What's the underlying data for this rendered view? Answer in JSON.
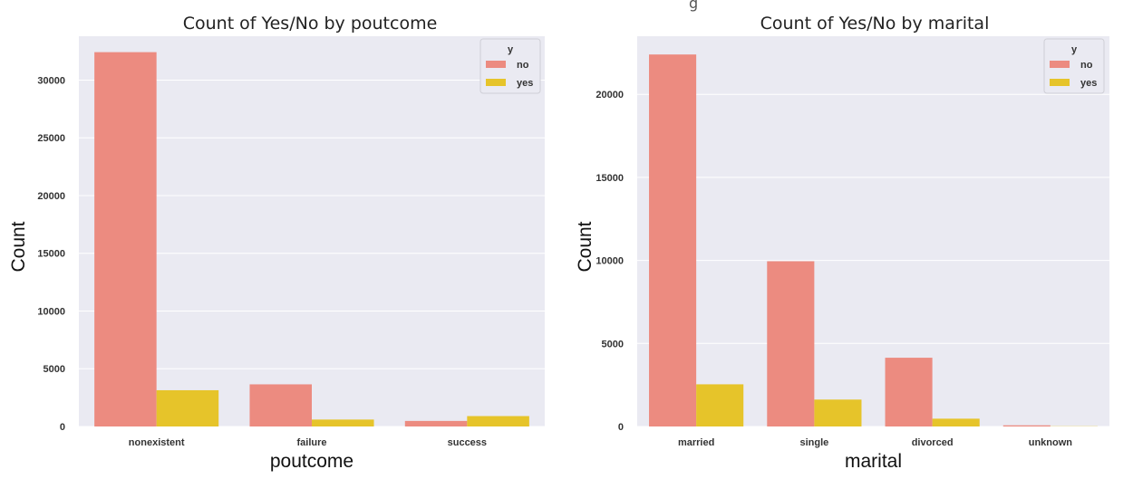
{
  "header_fragment": "g",
  "colors": {
    "no": "#ec8b80",
    "yes": "#e6c42a",
    "panel_bg": "#eaeaf2"
  },
  "legend": {
    "title": "y",
    "labels": [
      "no",
      "yes"
    ]
  },
  "chart_data": [
    {
      "type": "bar",
      "title": "Count of Yes/No by poutcome",
      "xlabel": "poutcome",
      "ylabel": "Count",
      "categories": [
        "nonexistent",
        "failure",
        "success"
      ],
      "series": [
        {
          "name": "no",
          "values": [
            32420,
            3650,
            480
          ]
        },
        {
          "name": "yes",
          "values": [
            3140,
            600,
            900
          ]
        }
      ],
      "ylim": [
        0,
        33800
      ],
      "yticks": [
        0,
        5000,
        10000,
        15000,
        20000,
        25000,
        30000
      ],
      "grid": true,
      "legend_position": "top-right"
    },
    {
      "type": "bar",
      "title": "Count of Yes/No by marital",
      "xlabel": "marital",
      "ylabel": "Count",
      "categories": [
        "married",
        "single",
        "divorced",
        "unknown"
      ],
      "series": [
        {
          "name": "no",
          "values": [
            22400,
            9950,
            4140,
            70
          ]
        },
        {
          "name": "yes",
          "values": [
            2540,
            1620,
            470,
            12
          ]
        }
      ],
      "ylim": [
        0,
        23500
      ],
      "yticks": [
        0,
        5000,
        10000,
        15000,
        20000
      ],
      "grid": true,
      "legend_position": "top-right"
    }
  ]
}
